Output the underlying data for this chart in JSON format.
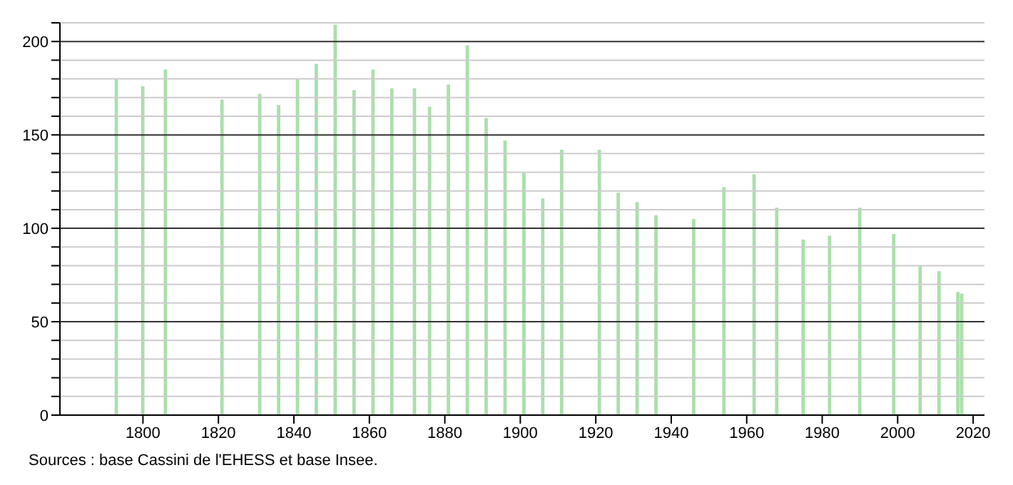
{
  "chart_data": {
    "type": "bar",
    "x": [
      1793,
      1800,
      1806,
      1821,
      1831,
      1836,
      1841,
      1846,
      1851,
      1856,
      1861,
      1866,
      1872,
      1876,
      1881,
      1886,
      1891,
      1896,
      1901,
      1906,
      1911,
      1921,
      1926,
      1931,
      1936,
      1946,
      1954,
      1962,
      1968,
      1975,
      1982,
      1990,
      1999,
      2006,
      2011,
      2016,
      2017
    ],
    "values": [
      180,
      176,
      185,
      169,
      172,
      166,
      180,
      188,
      209,
      174,
      185,
      175,
      175,
      165,
      177,
      198,
      159,
      147,
      130,
      116,
      142,
      142,
      119,
      114,
      107,
      105,
      122,
      129,
      111,
      94,
      96,
      111,
      97,
      80,
      77,
      66,
      65
    ],
    "color": "#aadfaa",
    "xlim": [
      1778,
      2023
    ],
    "xticks": [
      1800,
      1820,
      1840,
      1860,
      1880,
      1900,
      1920,
      1940,
      1960,
      1980,
      2000,
      2020
    ],
    "ylim": [
      0,
      210
    ],
    "yticks": [
      0,
      {
        "value": 10,
        "label": null
      },
      {
        "value": 20,
        "label": null
      },
      {
        "value": 30,
        "label": null
      },
      {
        "value": 40,
        "label": null
      },
      50,
      {
        "value": 60,
        "label": null
      },
      {
        "value": 70,
        "label": null
      },
      {
        "value": 80,
        "label": null
      },
      {
        "value": 90,
        "label": null
      },
      100,
      {
        "value": 110,
        "label": null
      },
      {
        "value": 120,
        "label": null
      },
      {
        "value": 130,
        "label": null
      },
      {
        "value": 140,
        "label": null
      },
      150,
      {
        "value": 160,
        "label": null
      },
      {
        "value": 170,
        "label": null
      },
      {
        "value": 180,
        "label": null
      },
      {
        "value": 190,
        "label": null
      },
      200,
      {
        "value": 210,
        "label": null
      }
    ],
    "grid": "y",
    "annotations": [
      "Sources : base Cassini de l'EHESS et base Insee."
    ]
  }
}
